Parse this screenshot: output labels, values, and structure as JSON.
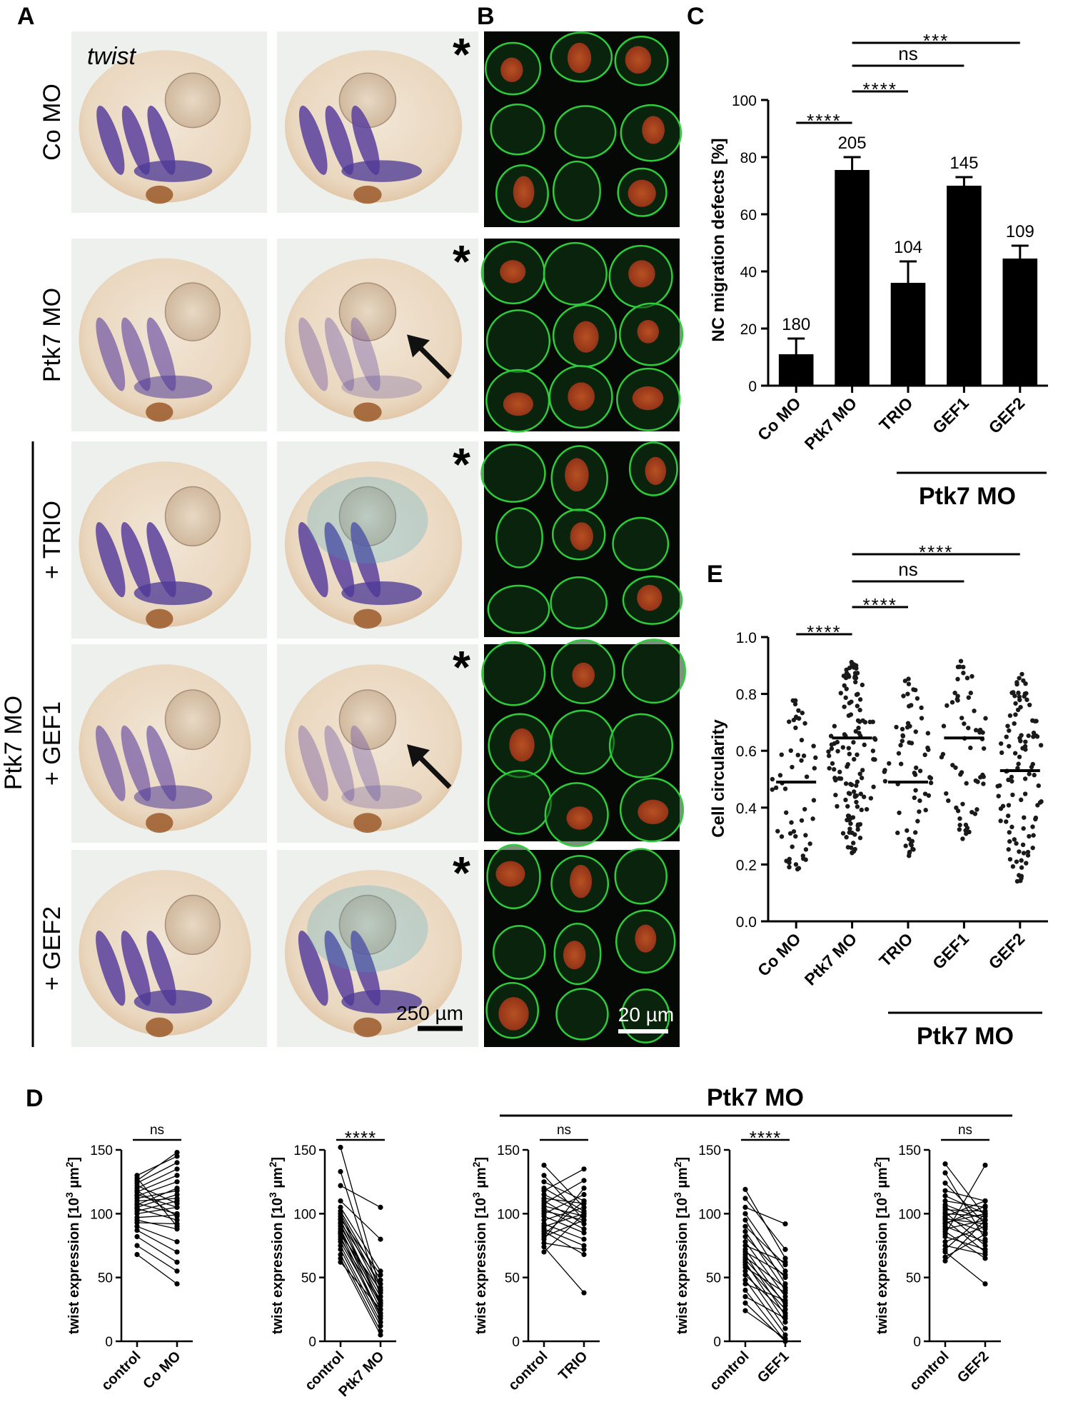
{
  "panels": {
    "A": "A",
    "B": "B",
    "C": "C",
    "D": "D",
    "E": "E"
  },
  "panel_a": {
    "gene_label": "twist",
    "row_labels": [
      "Co MO",
      "Ptk7 MO",
      "+ TRIO",
      "+ GEF1",
      "+ GEF2"
    ],
    "group_label": "Ptk7 MO",
    "scale_bar": "250 µm",
    "injected_marker": "*",
    "arrow_rows": [
      1,
      3
    ]
  },
  "panel_b": {
    "scale_bar": "20 µm",
    "colors": {
      "membrane": "#2ecc3a",
      "nucleus": "#d8401e",
      "background": "#050805"
    }
  },
  "chart_data": [
    {
      "id": "C",
      "type": "bar",
      "ylabel": "NC migration defects [%]",
      "categories": [
        "Co MO",
        "Ptk7 MO",
        "TRIO",
        "GEF1",
        "GEF2"
      ],
      "values": [
        11,
        75.5,
        36,
        70,
        44.5
      ],
      "errors": [
        5.5,
        4.5,
        7.5,
        3,
        4.5
      ],
      "n_labels": [
        "180",
        "205",
        "104",
        "145",
        "109"
      ],
      "ylim": [
        0,
        100
      ],
      "yticks": [
        "0",
        "20",
        "40",
        "60",
        "80",
        "100"
      ],
      "group_label": "Ptk7 MO",
      "comparisons": [
        {
          "from": 0,
          "to": 1,
          "label": "****"
        },
        {
          "from": 1,
          "to": 2,
          "label": "****"
        },
        {
          "from": 1,
          "to": 3,
          "label": "ns"
        },
        {
          "from": 1,
          "to": 4,
          "label": "***"
        }
      ],
      "bar_color": "#000000"
    },
    {
      "id": "E",
      "type": "scatter",
      "ylabel": "Cell circularity",
      "categories": [
        "Co MO",
        "Ptk7 MO",
        "TRIO",
        "GEF1",
        "GEF2"
      ],
      "medians": [
        0.49,
        0.645,
        0.49,
        0.645,
        0.53
      ],
      "groups": [
        {
          "n": 55,
          "min": 0.14,
          "max": 0.78
        },
        {
          "n": 130,
          "min": 0.24,
          "max": 0.92
        },
        {
          "n": 65,
          "min": 0.22,
          "max": 0.86
        },
        {
          "n": 60,
          "min": 0.29,
          "max": 0.93
        },
        {
          "n": 105,
          "min": 0.14,
          "max": 0.87
        }
      ],
      "ylim": [
        0,
        1
      ],
      "yticks": [
        "0.0",
        "0.2",
        "0.4",
        "0.6",
        "0.8",
        "1.0"
      ],
      "group_label": "Ptk7 MO",
      "comparisons": [
        {
          "from": 0,
          "to": 1,
          "label": "****"
        },
        {
          "from": 1,
          "to": 2,
          "label": "****"
        },
        {
          "from": 1,
          "to": 3,
          "label": "ns"
        },
        {
          "from": 1,
          "to": 4,
          "label": "****"
        }
      ]
    },
    {
      "id": "D",
      "type": "line",
      "ylabel_main": "twist expression [10",
      "ylabel_sup1": "3",
      "ylabel_mid": " µm",
      "ylabel_sup2": "2",
      "ylabel_end": "]",
      "ylim": [
        0,
        150
      ],
      "yticks": [
        "0",
        "50",
        "100",
        "150"
      ],
      "group_label": "Ptk7 MO",
      "plots": [
        {
          "xlabels": [
            "control",
            "Co MO"
          ],
          "sig": "ns",
          "pairs": [
            [
              68,
              45
            ],
            [
              75,
              55
            ],
            [
              82,
              62
            ],
            [
              87,
              70
            ],
            [
              90,
              78
            ],
            [
              93,
              92
            ],
            [
              95,
              88
            ],
            [
              97,
              99
            ],
            [
              100,
              105
            ],
            [
              102,
              110
            ],
            [
              104,
              95
            ],
            [
              105,
              115
            ],
            [
              107,
              120
            ],
            [
              108,
              100
            ],
            [
              110,
              112
            ],
            [
              112,
              118
            ],
            [
              114,
              125
            ],
            [
              115,
              105
            ],
            [
              117,
              130
            ],
            [
              118,
              98
            ],
            [
              120,
              135
            ],
            [
              122,
              108
            ],
            [
              124,
              140
            ],
            [
              126,
              148
            ],
            [
              128,
              90
            ],
            [
              130,
              145
            ]
          ]
        },
        {
          "xlabels": [
            "control",
            "Ptk7 MO"
          ],
          "sig": "****",
          "pairs": [
            [
              152,
              40
            ],
            [
              133,
              35
            ],
            [
              122,
              105
            ],
            [
              110,
              80
            ],
            [
              105,
              55
            ],
            [
              102,
              48
            ],
            [
              100,
              42
            ],
            [
              98,
              38
            ],
            [
              96,
              52
            ],
            [
              95,
              30
            ],
            [
              93,
              45
            ],
            [
              92,
              28
            ],
            [
              90,
              35
            ],
            [
              88,
              25
            ],
            [
              86,
              32
            ],
            [
              85,
              20
            ],
            [
              84,
              40
            ],
            [
              82,
              18
            ],
            [
              80,
              30
            ],
            [
              78,
              22
            ],
            [
              75,
              15
            ],
            [
              72,
              12
            ],
            [
              68,
              8
            ],
            [
              65,
              5
            ],
            [
              62,
              25
            ]
          ]
        },
        {
          "xlabels": [
            "control",
            "TRIO"
          ],
          "sig": "ns",
          "pairs": [
            [
              138,
              105
            ],
            [
              130,
              95
            ],
            [
              125,
              110
            ],
            [
              120,
              102
            ],
            [
              118,
              135
            ],
            [
              115,
              100
            ],
            [
              112,
              108
            ],
            [
              110,
              92
            ],
            [
              108,
              126
            ],
            [
              106,
              98
            ],
            [
              104,
              88
            ],
            [
              102,
              95
            ],
            [
              100,
              115
            ],
            [
              98,
              85
            ],
            [
              95,
              105
            ],
            [
              92,
              80
            ],
            [
              90,
              100
            ],
            [
              88,
              75
            ],
            [
              86,
              68
            ],
            [
              84,
              110
            ],
            [
              82,
              95
            ],
            [
              80,
              120
            ],
            [
              77,
              72
            ],
            [
              74,
              38
            ],
            [
              70,
              100
            ]
          ]
        },
        {
          "xlabels": [
            "control",
            "GEF1"
          ],
          "sig": "****",
          "pairs": [
            [
              119,
              65
            ],
            [
              112,
              72
            ],
            [
              105,
              92
            ],
            [
              100,
              55
            ],
            [
              95,
              45
            ],
            [
              90,
              60
            ],
            [
              86,
              40
            ],
            [
              82,
              50
            ],
            [
              78,
              35
            ],
            [
              75,
              62
            ],
            [
              72,
              28
            ],
            [
              70,
              52
            ],
            [
              68,
              20
            ],
            [
              66,
              42
            ],
            [
              64,
              30
            ],
            [
              62,
              15
            ],
            [
              60,
              25
            ],
            [
              58,
              38
            ],
            [
              55,
              10
            ],
            [
              52,
              22
            ],
            [
              48,
              5
            ],
            [
              45,
              32
            ],
            [
              40,
              0
            ],
            [
              35,
              18
            ],
            [
              30,
              0
            ],
            [
              24,
              2
            ]
          ]
        },
        {
          "xlabels": [
            "control",
            "GEF2"
          ],
          "sig": "ns",
          "pairs": [
            [
              139,
              98
            ],
            [
              132,
              80
            ],
            [
              124,
              92
            ],
            [
              118,
              110
            ],
            [
              114,
              100
            ],
            [
              110,
              105
            ],
            [
              107,
              95
            ],
            [
              105,
              88
            ],
            [
              103,
              102
            ],
            [
              101,
              75
            ],
            [
              100,
              98
            ],
            [
              98,
              110
            ],
            [
              97,
              85
            ],
            [
              96,
              92
            ],
            [
              95,
              70
            ],
            [
              93,
              100
            ],
            [
              92,
              106
            ],
            [
              90,
              78
            ],
            [
              88,
              95
            ],
            [
              86,
              65
            ],
            [
              84,
              138
            ],
            [
              82,
              72
            ],
            [
              78,
              90
            ],
            [
              75,
              68
            ],
            [
              72,
              100
            ],
            [
              70,
              45
            ],
            [
              66,
              84
            ],
            [
              63,
              95
            ]
          ]
        }
      ]
    }
  ]
}
